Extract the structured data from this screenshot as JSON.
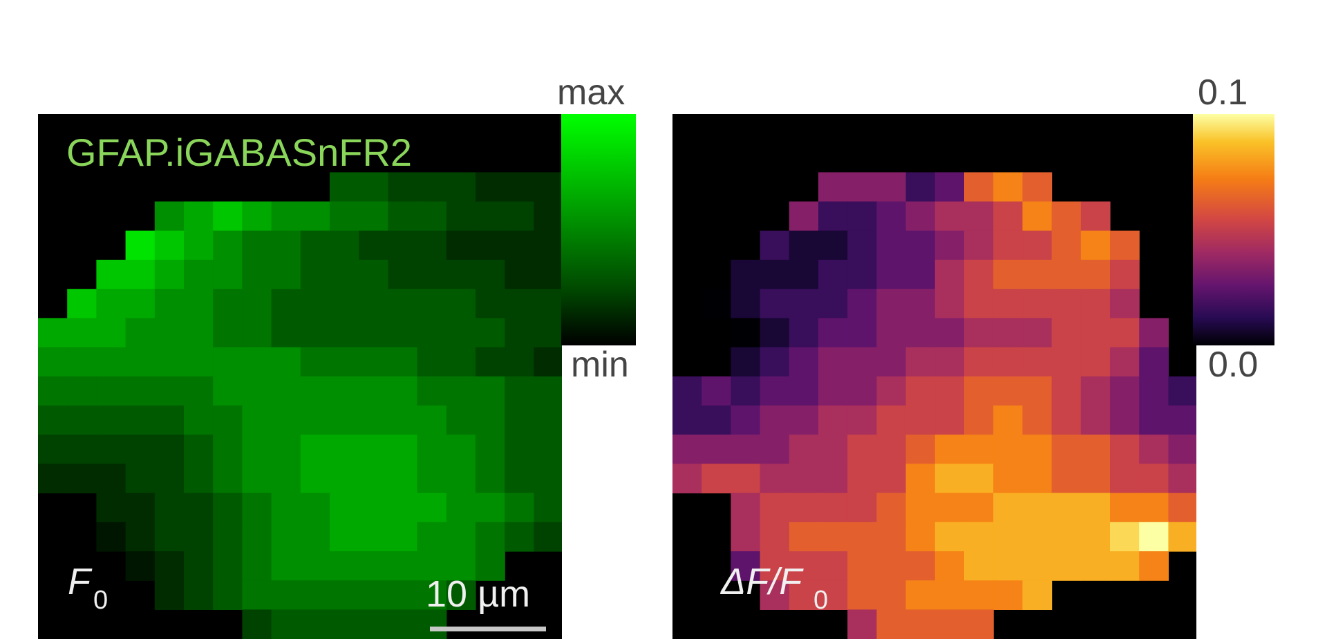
{
  "panel_f0": {
    "title": "GFAP.iGABASnFR2",
    "label": "F",
    "label_sub": "0",
    "scale_bar_label": "10 µm",
    "colorbar_max": "max",
    "colorbar_min": "min",
    "colormap_colors": [
      "#000000",
      "#004a00",
      "#00a000",
      "#00ff00"
    ],
    "title_color": "#8ad65a"
  },
  "panel_df": {
    "label": "ΔF/F",
    "label_sub": "0",
    "colorbar_max": "0.1",
    "colorbar_min": "0.0",
    "colormap": "inferno",
    "colormap_colors": [
      "#000004",
      "#280b53",
      "#65156e",
      "#9f2a63",
      "#d44842",
      "#f57d15",
      "#fac228",
      "#fcffa4"
    ]
  },
  "f0_grid": [
    "..........",
    "....................",
    "..........44333222..",
    "....678766554433321.",
    "...9876554433322221.",
    "..887665544433332222",
    ".8776655444444433322",
    "77766655444444443321",
    "66666666655554433221",
    "55555566666665554433",
    "44444556666666554433",
    "3333345667777665443.",
    "2223345667777665443.",
    "..2233456677776654..",
    "..1233456677766543..",
    "...1234566666665..",
    "....23455555554..",
    "......3444444.."
  ],
  "df_grid": [
    "..........",
    "....................",
    ".....44423787.......",
    "....42234556876.....",
    "...2112334566787....",
    "..11122335677776....",
    ".012223445666665....",
    "..012334445556664...",
    "..123444556666653...",
    "2323344566777654322.",
    "2234455666787654333.",
    "44445566788887765444",
    "56655566899887766555",
    "..5666678889999887..",
    "..5677778999999AB98.",
    "..366677789999998...",
    "...5667788889........",
    "......57777......"
  ]
}
